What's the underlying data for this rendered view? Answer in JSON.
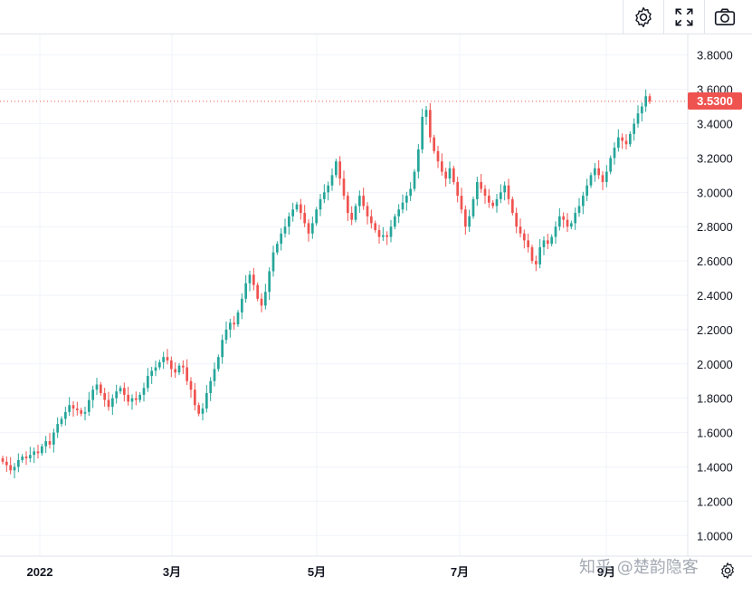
{
  "toolbar": {
    "settings_icon": "gear-icon",
    "fullscreen_icon": "fullscreen-icon",
    "screenshot_icon": "camera-icon"
  },
  "watermark": "知乎 @楚韵隐客",
  "last_price": "3.5300",
  "colors": {
    "up": "#26a69a",
    "down": "#ef5350",
    "grid": "#f0f3fa",
    "axis_text": "#131722"
  },
  "chart_data": {
    "type": "candlestick",
    "title": "",
    "y_axis_position": "right",
    "ylim": [
      0.88,
      3.92
    ],
    "y_ticks": [
      "1.0000",
      "1.2000",
      "1.4000",
      "1.6000",
      "1.8000",
      "2.0000",
      "2.2000",
      "2.4000",
      "2.6000",
      "2.8000",
      "3.0000",
      "3.2000",
      "3.4000",
      "3.6000",
      "3.8000"
    ],
    "x_ticks": [
      "2022",
      "3月",
      "5月",
      "7月",
      "9月"
    ],
    "last_price": 3.53,
    "price_line": "dotted",
    "series": [
      {
        "values": [
          1.43,
          1.41,
          1.38,
          1.4,
          1.44,
          1.46,
          1.45,
          1.47,
          1.49,
          1.48,
          1.52,
          1.55,
          1.53,
          1.6,
          1.65,
          1.68,
          1.72,
          1.76,
          1.74,
          1.73,
          1.71,
          1.72,
          1.79,
          1.85,
          1.88,
          1.83,
          1.79,
          1.75,
          1.8,
          1.84,
          1.86,
          1.82,
          1.78,
          1.8,
          1.79,
          1.82,
          1.86,
          1.93,
          1.96,
          1.98,
          2.01,
          2.04,
          2.02,
          1.97,
          1.95,
          1.99,
          1.98,
          1.9,
          1.85,
          1.76,
          1.71,
          1.74,
          1.83,
          1.9,
          1.97,
          2.04,
          2.14,
          2.2,
          2.24,
          2.23,
          2.3,
          2.38,
          2.47,
          2.52,
          2.46,
          2.38,
          2.34,
          2.42,
          2.54,
          2.65,
          2.7,
          2.76,
          2.8,
          2.86,
          2.9,
          2.93,
          2.88,
          2.82,
          2.76,
          2.82,
          2.9,
          2.96,
          3.0,
          3.04,
          3.1,
          3.18,
          3.08,
          2.98,
          2.88,
          2.84,
          2.92,
          2.98,
          2.92,
          2.86,
          2.82,
          2.78,
          2.74,
          2.75,
          2.74,
          2.8,
          2.86,
          2.9,
          2.94,
          2.98,
          3.02,
          3.12,
          3.25,
          3.44,
          3.48,
          3.32,
          3.24,
          3.18,
          3.12,
          3.08,
          3.14,
          3.06,
          2.98,
          2.9,
          2.8,
          2.86,
          2.96,
          3.06,
          3.02,
          2.98,
          2.94,
          2.92,
          2.96,
          3.0,
          3.04,
          2.96,
          2.88,
          2.8,
          2.76,
          2.72,
          2.68,
          2.6,
          2.58,
          2.68,
          2.72,
          2.7,
          2.74,
          2.8,
          2.86,
          2.84,
          2.8,
          2.82,
          2.88,
          2.92,
          2.98,
          3.04,
          3.1,
          3.14,
          3.1,
          3.06,
          3.12,
          3.2,
          3.26,
          3.32,
          3.3,
          3.28,
          3.34,
          3.4,
          3.46,
          3.5,
          3.56,
          3.53
        ]
      }
    ]
  }
}
